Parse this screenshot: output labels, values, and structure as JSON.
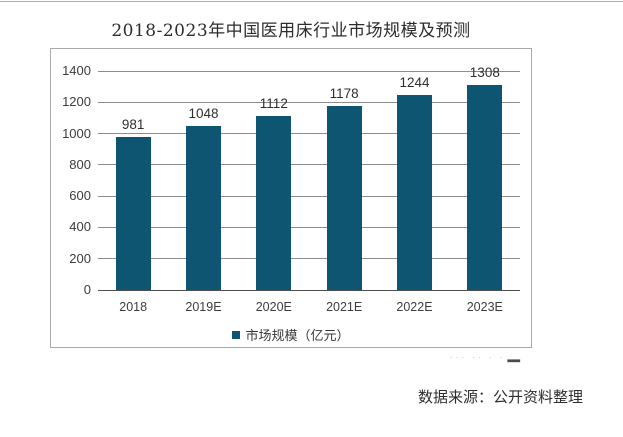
{
  "page": {
    "title": "2018-2023年中国医用床行业市场规模及预测",
    "source_note": "数据来源：公开资料整理",
    "watermark_fragment": {
      "dots": "··· ··  · ·",
      "dash": "▂▂"
    }
  },
  "chart_data": {
    "type": "bar",
    "title": "2018-2023年中国医用床行业市场规模及预测",
    "categories": [
      "2018",
      "2019E",
      "2020E",
      "2021E",
      "2022E",
      "2023E"
    ],
    "values": [
      981,
      1048,
      1112,
      1178,
      1244,
      1308
    ],
    "series_name": "市场规模（亿元）",
    "legend_position": "bottom",
    "data_labels": [
      981,
      1048,
      1112,
      1178,
      1244,
      1308
    ],
    "xlabel": "",
    "ylabel": "",
    "ylim": [
      0,
      1400
    ],
    "y_ticks": [
      0,
      200,
      400,
      600,
      800,
      1000,
      1200,
      1400
    ],
    "grid": true,
    "colors": {
      "bar": "#0d5570",
      "gridline": "#8c8c8c",
      "axis_line": "#4f4f4f",
      "panel_border": "#a9a9a9"
    }
  }
}
